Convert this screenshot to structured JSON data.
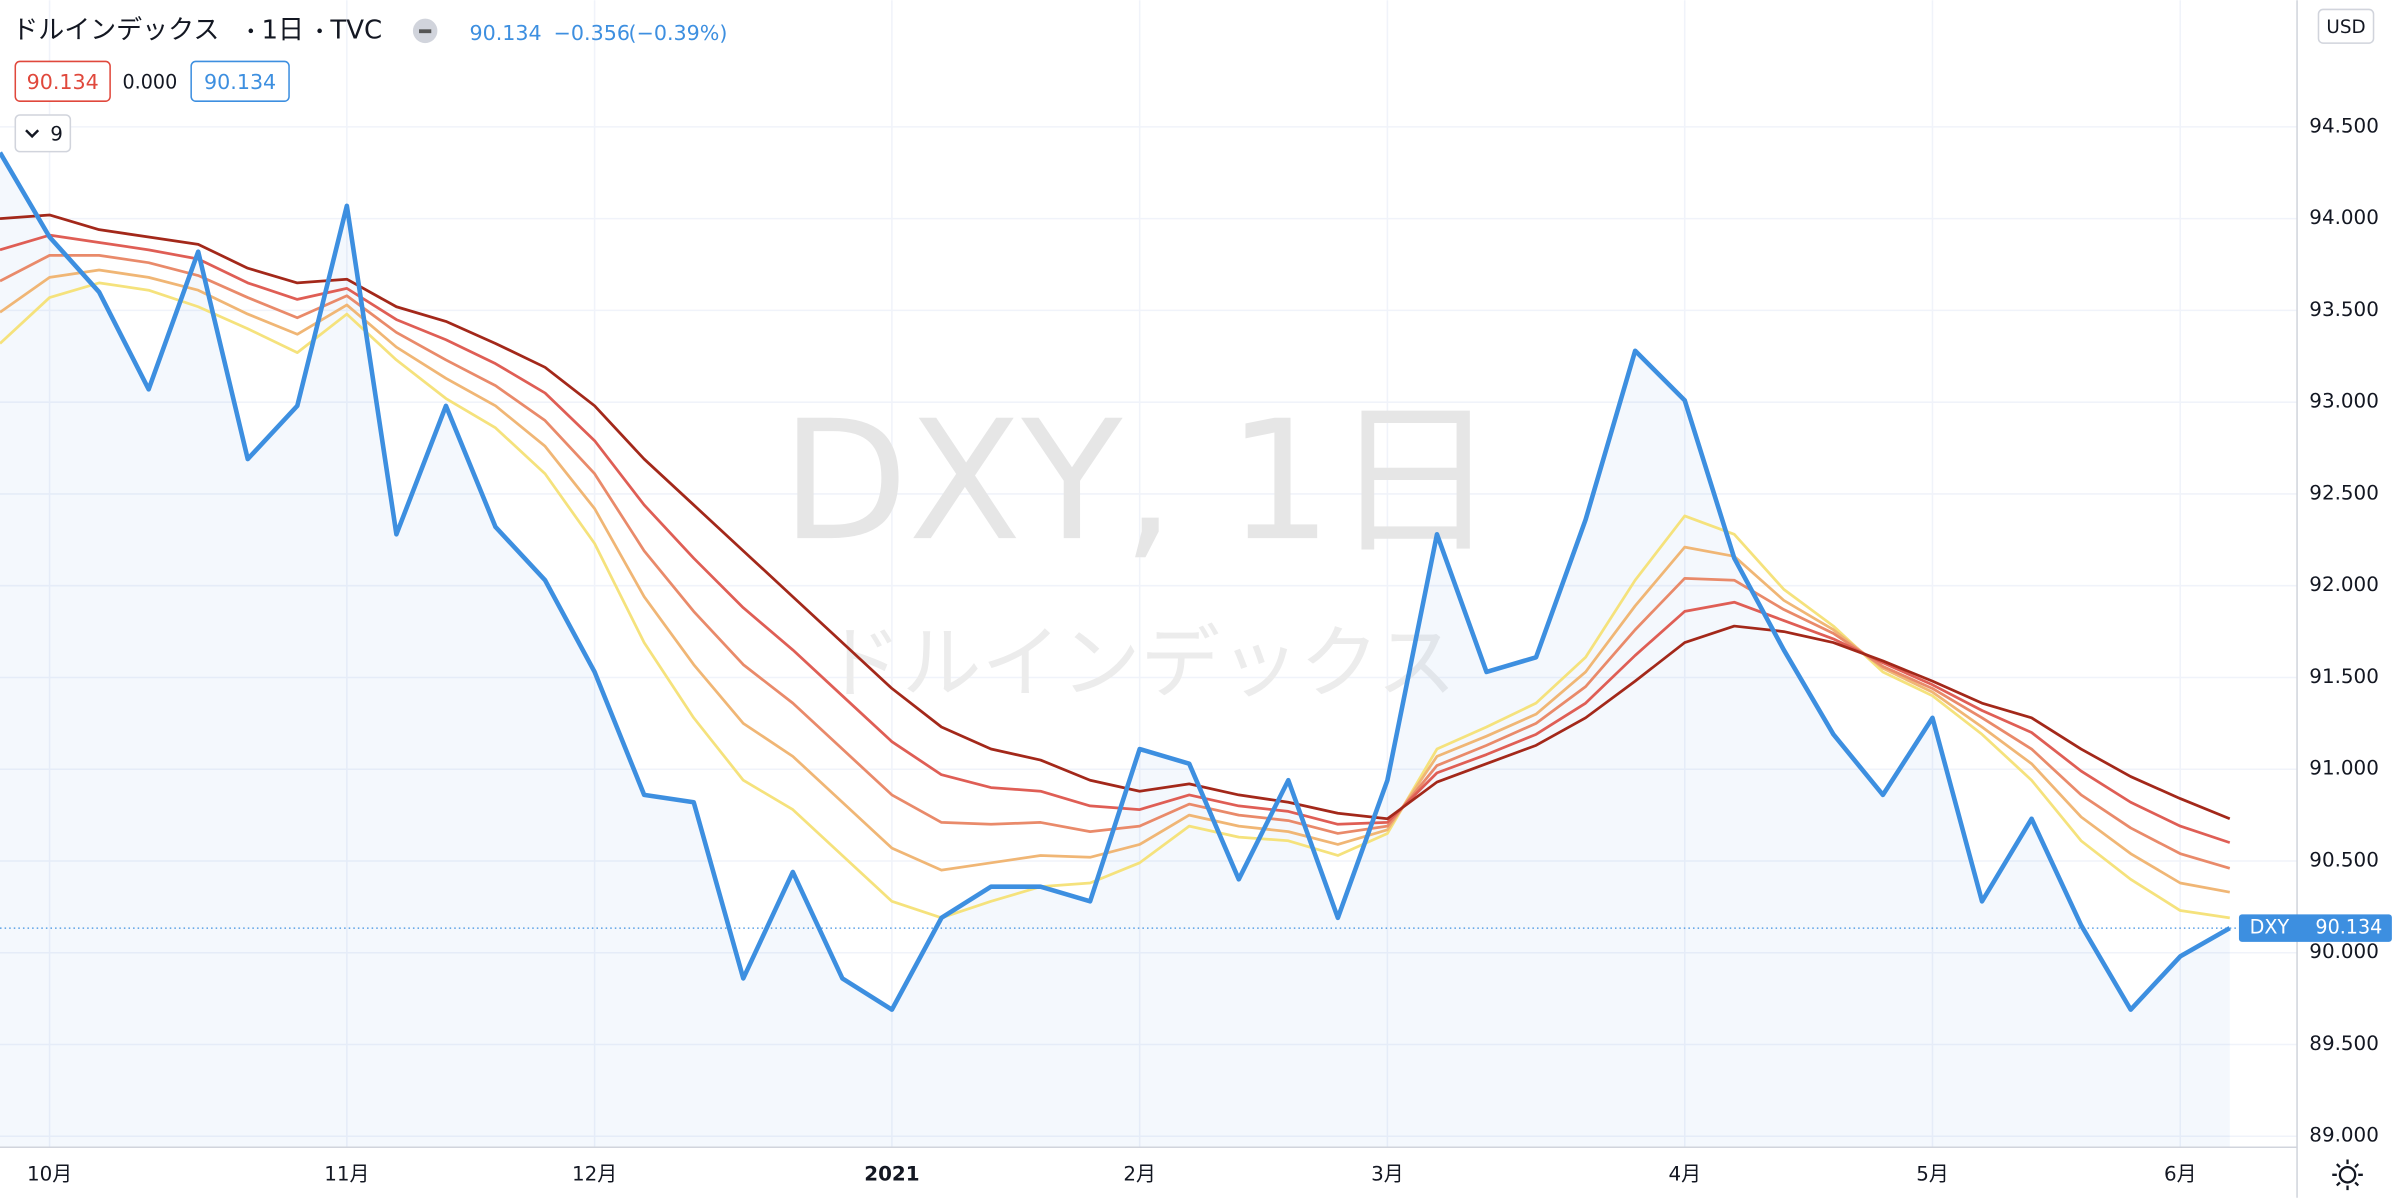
{
  "header": {
    "symbol": "ドルインデックス",
    "interval": "1日",
    "exchange": "TVC",
    "last": "90.134",
    "change": "−0.356",
    "change_pct": "(−0.39%)",
    "box1": "90.134",
    "box2": "0.000",
    "box3": "90.134",
    "collapse": "9"
  },
  "watermark": {
    "line1": "DXY, 1日",
    "line2": "ドルインデックス"
  },
  "currency": "USD",
  "chart_data": {
    "type": "line",
    "categories": [
      null,
      "10月",
      null,
      null,
      null,
      null,
      null,
      "11月",
      null,
      null,
      null,
      null,
      "12月",
      null,
      null,
      null,
      null,
      null,
      "2021",
      null,
      null,
      null,
      null,
      "2月",
      null,
      null,
      null,
      null,
      "3月",
      null,
      null,
      null,
      null,
      null,
      "4月",
      null,
      null,
      null,
      null,
      "5月",
      null,
      null,
      null,
      null,
      "6月",
      null
    ],
    "series": [
      {
        "name": "DXY",
        "color": "#3d8fe0",
        "values": [
          94.36,
          93.9,
          93.6,
          93.07,
          93.82,
          92.69,
          92.98,
          94.07,
          92.28,
          92.98,
          92.32,
          92.03,
          91.53,
          90.86,
          90.82,
          89.86,
          90.44,
          89.86,
          89.69,
          90.19,
          90.36,
          90.36,
          90.28,
          91.11,
          91.03,
          90.4,
          90.94,
          90.19,
          90.94,
          92.28,
          91.53,
          91.61,
          92.36,
          93.28,
          93.01,
          92.15,
          91.65,
          91.19,
          90.86,
          91.28,
          90.28,
          90.73,
          90.15,
          89.69,
          89.98,
          90.134
        ]
      },
      {
        "color": "#f5e27c",
        "values": [
          93.32,
          93.57,
          93.65,
          93.61,
          93.52,
          93.4,
          93.27,
          93.48,
          93.23,
          93.02,
          92.86,
          92.61,
          92.23,
          91.69,
          91.28,
          90.94,
          90.78,
          90.53,
          90.28,
          90.19,
          90.28,
          90.36,
          90.38,
          90.49,
          90.69,
          90.63,
          90.61,
          90.53,
          90.65,
          91.11,
          91.23,
          91.36,
          91.61,
          92.03,
          92.38,
          92.28,
          91.98,
          91.78,
          91.53,
          91.4,
          91.19,
          90.94,
          90.61,
          90.4,
          90.23,
          90.19
        ]
      },
      {
        "color": "#f0b675",
        "values": [
          93.49,
          93.68,
          93.72,
          93.68,
          93.61,
          93.48,
          93.37,
          93.53,
          93.3,
          93.13,
          92.98,
          92.76,
          92.42,
          91.94,
          91.57,
          91.25,
          91.07,
          90.82,
          90.57,
          90.45,
          90.49,
          90.53,
          90.52,
          90.59,
          90.75,
          90.69,
          90.66,
          90.59,
          90.67,
          91.07,
          91.18,
          91.3,
          91.53,
          91.89,
          92.21,
          92.16,
          91.92,
          91.76,
          91.55,
          91.42,
          91.23,
          91.03,
          90.74,
          90.54,
          90.38,
          90.33
        ]
      },
      {
        "color": "#e98a6a",
        "values": [
          93.66,
          93.8,
          93.8,
          93.76,
          93.69,
          93.57,
          93.46,
          93.58,
          93.38,
          93.23,
          93.09,
          92.9,
          92.61,
          92.19,
          91.86,
          91.57,
          91.36,
          91.11,
          90.86,
          90.71,
          90.7,
          90.71,
          90.66,
          90.69,
          90.81,
          90.75,
          90.72,
          90.65,
          90.69,
          91.02,
          91.13,
          91.25,
          91.45,
          91.76,
          92.04,
          92.03,
          91.87,
          91.74,
          91.56,
          91.44,
          91.28,
          91.11,
          90.86,
          90.68,
          90.54,
          90.46
        ]
      },
      {
        "color": "#df5e55",
        "values": [
          93.83,
          93.91,
          93.87,
          93.83,
          93.78,
          93.65,
          93.56,
          93.62,
          93.45,
          93.34,
          93.21,
          93.05,
          92.79,
          92.44,
          92.15,
          91.88,
          91.65,
          91.4,
          91.15,
          90.97,
          90.9,
          90.88,
          90.8,
          90.78,
          90.86,
          90.8,
          90.77,
          90.7,
          90.71,
          90.98,
          91.08,
          91.19,
          91.36,
          91.62,
          91.86,
          91.91,
          91.81,
          91.71,
          91.58,
          91.46,
          91.32,
          91.2,
          90.99,
          90.82,
          90.69,
          90.6
        ]
      },
      {
        "color": "#a3281a",
        "values": [
          94.0,
          94.02,
          93.94,
          93.9,
          93.86,
          93.73,
          93.65,
          93.67,
          93.52,
          93.44,
          93.32,
          93.19,
          92.98,
          92.69,
          92.44,
          92.19,
          91.94,
          91.69,
          91.44,
          91.23,
          91.11,
          91.05,
          90.94,
          90.88,
          90.92,
          90.86,
          90.82,
          90.76,
          90.73,
          90.93,
          91.03,
          91.13,
          91.28,
          91.48,
          91.69,
          91.78,
          91.75,
          91.69,
          91.59,
          91.48,
          91.36,
          91.28,
          91.11,
          90.96,
          90.84,
          90.73
        ]
      }
    ],
    "ylim": [
      88.94,
      95.19
    ],
    "yticks": [
      {
        "value": 89,
        "label": "89.000"
      },
      {
        "value": 89.5,
        "label": "89.500"
      },
      {
        "value": 90,
        "label": "90.000"
      },
      {
        "value": 90.5,
        "label": "90.500"
      },
      {
        "value": 91,
        "label": "91.000"
      },
      {
        "value": 91.5,
        "label": "91.500"
      },
      {
        "value": 92,
        "label": "92.000"
      },
      {
        "value": 92.5,
        "label": "92.500"
      },
      {
        "value": 93,
        "label": "93.000"
      },
      {
        "value": 93.5,
        "label": "93.500"
      },
      {
        "value": 94,
        "label": "94.000"
      },
      {
        "value": 94.5,
        "label": "94.500"
      }
    ],
    "grid": true
  }
}
